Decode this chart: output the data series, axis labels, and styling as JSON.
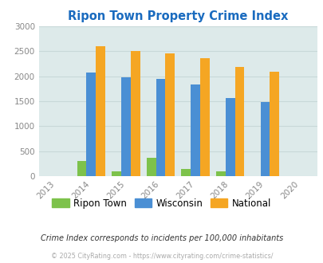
{
  "title": "Ripon Town Property Crime Index",
  "all_years": [
    2013,
    2014,
    2015,
    2016,
    2017,
    2018,
    2019,
    2020
  ],
  "data_years": [
    2014,
    2015,
    2016,
    2017,
    2018,
    2019
  ],
  "ripon_town": [
    300,
    100,
    375,
    150,
    90,
    0
  ],
  "wisconsin": [
    2080,
    1975,
    1950,
    1830,
    1560,
    1480
  ],
  "national": [
    2600,
    2500,
    2460,
    2360,
    2190,
    2090
  ],
  "bar_colors": {
    "ripon": "#7dc24b",
    "wisconsin": "#4a8fd4",
    "national": "#f5a623"
  },
  "ylim": [
    0,
    3000
  ],
  "yticks": [
    0,
    500,
    1000,
    1500,
    2000,
    2500,
    3000
  ],
  "xlim": [
    2012.5,
    2020.5
  ],
  "bg_color": "#ddeaea",
  "grid_color": "#c8d8d8",
  "title_color": "#1a6bbf",
  "note_text": "Crime Index corresponds to incidents per 100,000 inhabitants",
  "footer_text": "© 2025 CityRating.com - https://www.cityrating.com/crime-statistics/",
  "legend_labels": [
    "Ripon Town",
    "Wisconsin",
    "National"
  ],
  "bar_width": 0.27
}
